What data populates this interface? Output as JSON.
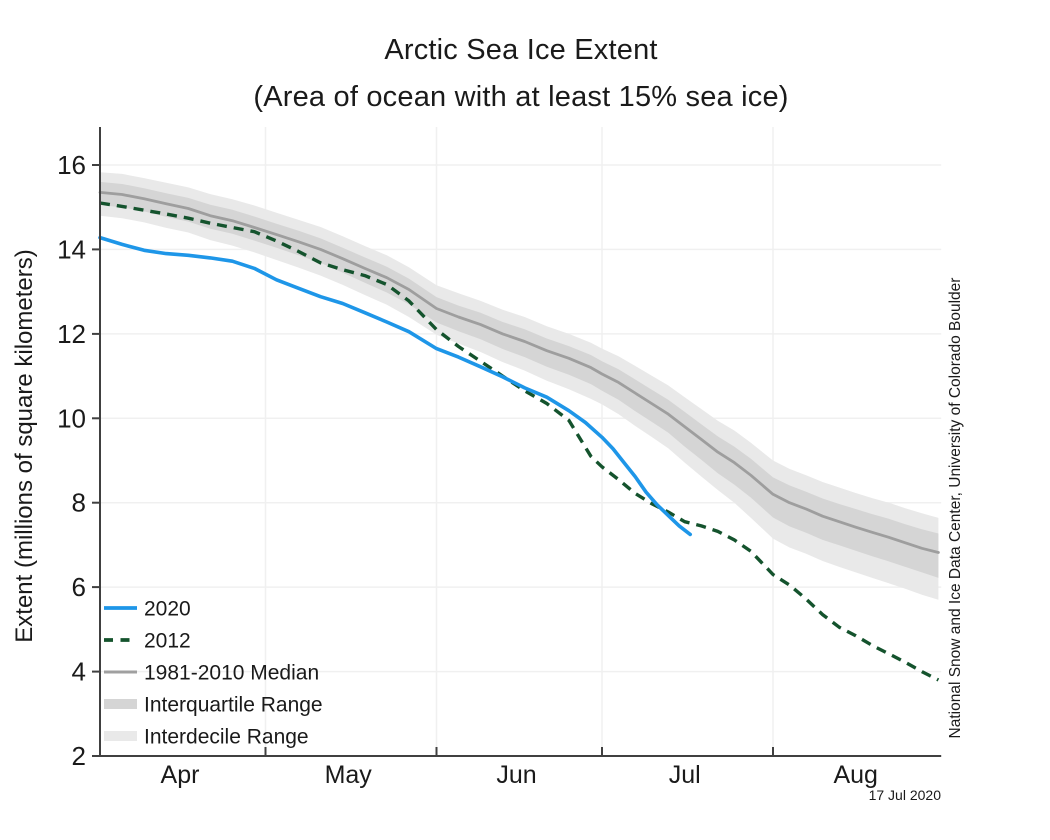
{
  "title": "Arctic Sea Ice Extent",
  "subtitle": "(Area of ocean with at least 15% sea ice)",
  "credit": "National Snow and Ice Data Center, University of Colorado Boulder",
  "date_stamp": "17 Jul 2020",
  "y_axis": {
    "label": "Extent (millions of square kilometers)",
    "ticks": [
      2,
      4,
      6,
      8,
      10,
      12,
      14,
      16
    ]
  },
  "x_axis": {
    "months": [
      "Apr",
      "May",
      "Jun",
      "Jul",
      "Aug"
    ]
  },
  "legend": [
    {
      "label": "2020",
      "style": "line",
      "color": "#1E96E8"
    },
    {
      "label": "2012",
      "style": "dashed",
      "color": "#14532D"
    },
    {
      "label": "1981-2010 Median",
      "style": "line",
      "color": "#A0A0A0"
    },
    {
      "label": "Interquartile Range",
      "style": "band",
      "color": "#D5D5D5"
    },
    {
      "label": "Interdecile Range",
      "style": "band",
      "color": "#E9E9E9"
    }
  ],
  "colors": {
    "line_2020": "#1E96E8",
    "line_2012": "#14532D",
    "median": "#9E9E9E",
    "interquartile": "#D5D5D5",
    "interdecile": "#E9E9E9",
    "gridline": "#F0F0F0",
    "axis": "#404040",
    "text": "#1A1A1A"
  },
  "chart_data": {
    "type": "line",
    "title": "Arctic Sea Ice Extent",
    "subtitle": "(Area of ocean with at least 15% sea ice)",
    "ylabel": "Extent (millions of square kilometers)",
    "y_range": [
      2,
      16.9
    ],
    "grid": true,
    "legend_position": "lower-left",
    "x_unit": "days since Apr 1",
    "x_range_days": [
      0,
      152.5
    ],
    "x_month_tick_days": [
      30,
      61,
      91,
      122
    ],
    "x_month_label_days": [
      14.5,
      45,
      75.5,
      106,
      137
    ],
    "series": [
      {
        "name": "2020",
        "days": [
          0,
          4,
          8,
          12,
          16,
          20,
          24,
          28,
          32,
          36,
          40,
          44,
          48,
          52,
          56,
          61,
          65,
          69,
          73,
          77,
          81,
          85,
          88,
          91,
          93,
          95,
          97,
          99,
          101,
          103,
          105,
          107
        ],
        "values": [
          14.28,
          14.12,
          13.98,
          13.9,
          13.86,
          13.8,
          13.72,
          13.55,
          13.28,
          13.08,
          12.88,
          12.72,
          12.5,
          12.28,
          12.05,
          11.65,
          11.45,
          11.22,
          10.98,
          10.72,
          10.5,
          10.18,
          9.9,
          9.55,
          9.28,
          8.95,
          8.62,
          8.25,
          7.95,
          7.7,
          7.45,
          7.25
        ]
      },
      {
        "name": "2012",
        "days": [
          0,
          4,
          8,
          12,
          16,
          20,
          24,
          28,
          32,
          36,
          40,
          44,
          48,
          52,
          56,
          61,
          65,
          69,
          73,
          77,
          81,
          85,
          89,
          91,
          94,
          97,
          100,
          103,
          106,
          109,
          112,
          115,
          118,
          122,
          125,
          128,
          131,
          134,
          137,
          140,
          143,
          146,
          149,
          152
        ],
        "values": [
          15.1,
          15.02,
          14.93,
          14.84,
          14.74,
          14.62,
          14.52,
          14.42,
          14.2,
          13.95,
          13.68,
          13.52,
          13.38,
          13.17,
          12.78,
          12.1,
          11.7,
          11.35,
          11.0,
          10.65,
          10.35,
          9.95,
          9.1,
          8.85,
          8.55,
          8.22,
          7.98,
          7.78,
          7.55,
          7.45,
          7.32,
          7.12,
          6.85,
          6.3,
          6.05,
          5.72,
          5.35,
          5.05,
          4.85,
          4.62,
          4.42,
          4.22,
          4.0,
          3.8
        ]
      },
      {
        "name": "1981-2010 Median",
        "days": [
          0,
          4,
          8,
          12,
          16,
          20,
          24,
          28,
          32,
          36,
          40,
          44,
          48,
          52,
          56,
          61,
          65,
          69,
          73,
          77,
          81,
          85,
          89,
          91,
          94,
          97,
          100,
          103,
          106,
          109,
          112,
          115,
          118,
          122,
          125,
          128,
          131,
          134,
          137,
          140,
          143,
          146,
          149,
          152
        ],
        "values": [
          15.35,
          15.3,
          15.2,
          15.08,
          14.97,
          14.8,
          14.68,
          14.52,
          14.35,
          14.18,
          14.0,
          13.78,
          13.55,
          13.33,
          13.05,
          12.6,
          12.4,
          12.22,
          12.0,
          11.82,
          11.6,
          11.42,
          11.2,
          11.05,
          10.85,
          10.6,
          10.35,
          10.1,
          9.8,
          9.5,
          9.2,
          8.95,
          8.65,
          8.2,
          8.0,
          7.85,
          7.68,
          7.55,
          7.42,
          7.3,
          7.18,
          7.05,
          6.92,
          6.82
        ]
      }
    ],
    "bands": [
      {
        "name": "Interdecile Range",
        "days": [
          0,
          4,
          8,
          12,
          16,
          20,
          24,
          28,
          32,
          36,
          40,
          44,
          48,
          52,
          56,
          61,
          65,
          69,
          73,
          77,
          81,
          85,
          89,
          91,
          94,
          97,
          100,
          103,
          106,
          109,
          112,
          115,
          118,
          122,
          125,
          128,
          131,
          134,
          137,
          140,
          143,
          146,
          149,
          152
        ],
        "upper": [
          15.83,
          15.79,
          15.69,
          15.58,
          15.47,
          15.31,
          15.19,
          15.04,
          14.87,
          14.7,
          14.53,
          14.31,
          14.08,
          13.86,
          13.58,
          13.15,
          12.96,
          12.78,
          12.57,
          12.4,
          12.18,
          12.0,
          11.79,
          11.65,
          11.47,
          11.24,
          11.01,
          10.78,
          10.5,
          10.22,
          9.94,
          9.71,
          9.42,
          9.0,
          8.8,
          8.65,
          8.49,
          8.36,
          8.23,
          8.11,
          8.0,
          7.87,
          7.75,
          7.64
        ],
        "lower": [
          14.8,
          14.74,
          14.64,
          14.51,
          14.4,
          14.22,
          14.09,
          13.93,
          13.75,
          13.57,
          13.38,
          13.16,
          12.92,
          12.69,
          12.4,
          11.98,
          11.77,
          11.57,
          11.33,
          11.13,
          10.89,
          10.69,
          10.46,
          10.33,
          10.1,
          9.82,
          9.56,
          9.29,
          8.95,
          8.62,
          8.3,
          8.0,
          7.64,
          7.15,
          6.94,
          6.79,
          6.62,
          6.48,
          6.35,
          6.22,
          6.09,
          5.96,
          5.82,
          5.7
        ]
      },
      {
        "name": "Interquartile Range",
        "days": [
          0,
          4,
          8,
          12,
          16,
          20,
          24,
          28,
          32,
          36,
          40,
          44,
          48,
          52,
          56,
          61,
          65,
          69,
          73,
          77,
          81,
          85,
          89,
          91,
          94,
          97,
          100,
          103,
          106,
          109,
          112,
          115,
          118,
          122,
          125,
          128,
          131,
          134,
          137,
          140,
          143,
          146,
          149,
          152
        ],
        "upper": [
          15.6,
          15.55,
          15.45,
          15.33,
          15.22,
          15.06,
          14.94,
          14.78,
          14.61,
          14.44,
          14.26,
          14.04,
          13.81,
          13.59,
          13.31,
          12.87,
          12.67,
          12.5,
          12.28,
          12.11,
          11.89,
          11.71,
          11.5,
          11.35,
          11.16,
          10.92,
          10.68,
          10.44,
          10.15,
          9.86,
          9.57,
          9.33,
          9.04,
          8.6,
          8.41,
          8.26,
          8.1,
          7.97,
          7.85,
          7.73,
          7.62,
          7.49,
          7.37,
          7.27
        ],
        "lower": [
          15.05,
          15.0,
          14.9,
          14.77,
          14.66,
          14.49,
          14.37,
          14.21,
          14.04,
          13.86,
          13.68,
          13.45,
          13.21,
          12.98,
          12.7,
          12.27,
          12.06,
          11.87,
          11.64,
          11.45,
          11.22,
          11.03,
          10.81,
          10.65,
          10.44,
          10.17,
          9.92,
          9.66,
          9.33,
          9.02,
          8.7,
          8.43,
          8.12,
          7.65,
          7.44,
          7.29,
          7.12,
          6.99,
          6.86,
          6.73,
          6.61,
          6.48,
          6.35,
          6.22
        ]
      }
    ]
  }
}
